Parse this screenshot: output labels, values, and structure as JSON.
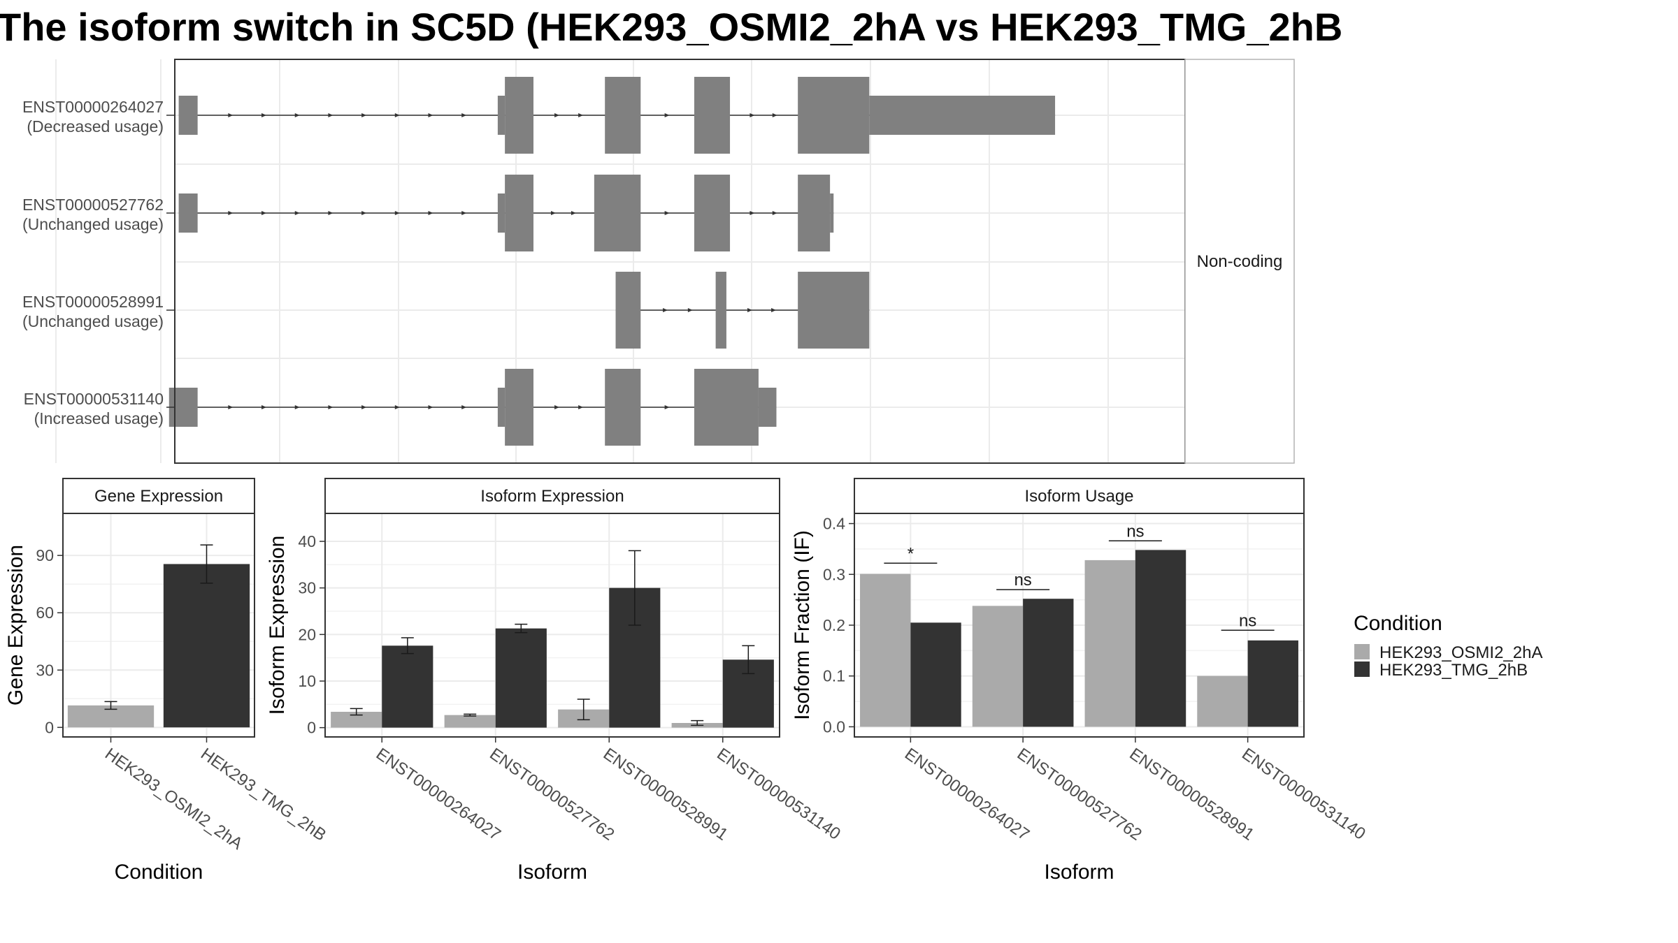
{
  "title": "The isoform switch in SC5D (HEK293_OSMI2_2hA vs HEK293_TMG_2hB",
  "colors": {
    "exon": "#808080",
    "condition_a": "#aaaaaa",
    "condition_b": "#333333",
    "panel_border": "#333333",
    "grid": "#ebebeb",
    "strip_fill": "#ffffff"
  },
  "chart_data": [
    {
      "type": "gene-structure",
      "facet_label": "Non-coding",
      "isoforms": [
        {
          "id": "ENST00000264027",
          "usage": "(Decreased usage)",
          "exons": [
            {
              "start": 0.07,
              "end": 0.6,
              "h": "s"
            },
            {
              "start": 9.0,
              "end": 9.2,
              "h": "s"
            },
            {
              "start": 9.2,
              "end": 10.0,
              "h": "l"
            },
            {
              "start": 12.0,
              "end": 13.0,
              "h": "l"
            },
            {
              "start": 14.5,
              "end": 15.5,
              "h": "l"
            },
            {
              "start": 17.4,
              "end": 19.4,
              "h": "l"
            },
            {
              "start": 19.4,
              "end": 24.6,
              "h": "s"
            }
          ]
        },
        {
          "id": "ENST00000527762",
          "usage": "(Unchanged usage)",
          "exons": [
            {
              "start": 0.07,
              "end": 0.6,
              "h": "s"
            },
            {
              "start": 9.0,
              "end": 9.2,
              "h": "s"
            },
            {
              "start": 9.2,
              "end": 10.0,
              "h": "l"
            },
            {
              "start": 11.7,
              "end": 13.0,
              "h": "l"
            },
            {
              "start": 14.5,
              "end": 15.5,
              "h": "l"
            },
            {
              "start": 17.4,
              "end": 18.3,
              "h": "l"
            },
            {
              "start": 18.3,
              "end": 18.4,
              "h": "s"
            }
          ]
        },
        {
          "id": "ENST00000528991",
          "usage": "(Unchanged usage)",
          "exons": [
            {
              "start": 12.3,
              "end": 13.0,
              "h": "l"
            },
            {
              "start": 15.1,
              "end": 15.4,
              "h": "l"
            },
            {
              "start": 17.4,
              "end": 19.4,
              "h": "l"
            }
          ]
        },
        {
          "id": "ENST00000531140",
          "usage": "(Increased usage)",
          "exons": [
            {
              "start": -0.2,
              "end": 0.6,
              "h": "s"
            },
            {
              "start": 9.0,
              "end": 9.2,
              "h": "s"
            },
            {
              "start": 9.2,
              "end": 10.0,
              "h": "l"
            },
            {
              "start": 12.0,
              "end": 13.0,
              "h": "l"
            },
            {
              "start": 14.5,
              "end": 16.3,
              "h": "l"
            },
            {
              "start": 16.3,
              "end": 16.8,
              "h": "s"
            }
          ]
        }
      ]
    },
    {
      "type": "bar",
      "strip": "Gene Expression",
      "xlabel": "Condition",
      "ylabel": "Gene Expression",
      "categories": [
        "HEK293_OSMI2_2hA",
        "HEK293_TMG_2hB"
      ],
      "values": [
        11.5,
        85.5
      ],
      "errors": [
        [
          9.5,
          13.5
        ],
        [
          75.5,
          95.5
        ]
      ],
      "ylim": [
        -5,
        112
      ],
      "yticks": [
        0,
        30,
        60,
        90
      ]
    },
    {
      "type": "bar",
      "strip": "Isoform Expression",
      "xlabel": "Isoform",
      "ylabel": "Isoform Expression",
      "categories": [
        "ENST00000264027",
        "ENST00000527762",
        "ENST00000528991",
        "ENST00000531140"
      ],
      "series": [
        {
          "name": "HEK293_OSMI2_2hA",
          "values": [
            3.4,
            2.7,
            3.9,
            1.0
          ],
          "errors": [
            [
              2.7,
              4.1
            ],
            [
              2.5,
              2.9
            ],
            [
              1.7,
              6.1
            ],
            [
              0.5,
              1.5
            ]
          ]
        },
        {
          "name": "HEK293_TMG_2hB",
          "values": [
            17.6,
            21.3,
            30.0,
            14.6
          ],
          "errors": [
            [
              15.9,
              19.3
            ],
            [
              20.4,
              22.2
            ],
            [
              22.0,
              38.0
            ],
            [
              11.6,
              17.6
            ]
          ]
        }
      ],
      "ylim": [
        -2,
        46
      ],
      "yticks": [
        0,
        10,
        20,
        30,
        40
      ]
    },
    {
      "type": "bar",
      "strip": "Isoform Usage",
      "xlabel": "Isoform",
      "ylabel": "Isoform Fraction (IF)",
      "categories": [
        "ENST00000264027",
        "ENST00000527762",
        "ENST00000528991",
        "ENST00000531140"
      ],
      "series": [
        {
          "name": "HEK293_OSMI2_2hA",
          "values": [
            0.301,
            0.238,
            0.328,
            0.1
          ]
        },
        {
          "name": "HEK293_TMG_2hB",
          "values": [
            0.205,
            0.252,
            0.348,
            0.17
          ]
        }
      ],
      "annotations": [
        {
          "label": "*",
          "y": 0.322
        },
        {
          "label": "ns",
          "y": 0.27
        },
        {
          "label": "ns",
          "y": 0.366
        },
        {
          "label": "ns",
          "y": 0.19
        }
      ],
      "ylim": [
        -0.02,
        0.42
      ],
      "yticks": [
        "0.0",
        "0.1",
        "0.2",
        "0.3",
        "0.4"
      ],
      "legend": {
        "title": "Condition",
        "position": "right",
        "entries": [
          "HEK293_OSMI2_2hA",
          "HEK293_TMG_2hB"
        ]
      }
    }
  ]
}
